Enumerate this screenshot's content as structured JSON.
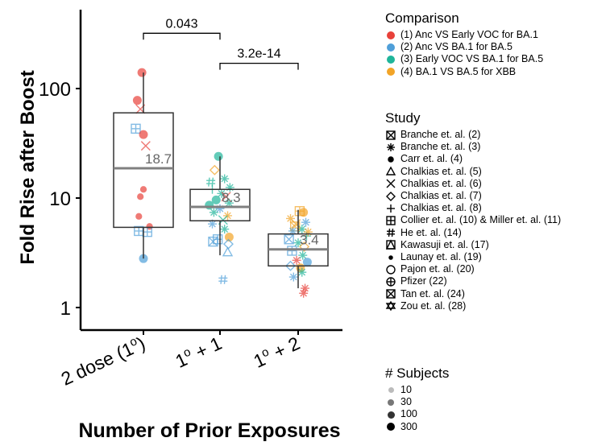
{
  "chart_data": {
    "type": "box",
    "ylabel": "Fold Rise after Boost",
    "xlabel": "Number of Prior Exposures",
    "yscale": "log",
    "ylim": [
      0.6,
      500
    ],
    "yticks": [
      {
        "value": 1,
        "label": "1"
      },
      {
        "value": 10,
        "label": "10"
      },
      {
        "value": 100,
        "label": "100"
      }
    ],
    "categories": [
      {
        "base": "2 dose (",
        "sup": "o",
        "sup_prefix": "1",
        "tail": ")"
      },
      {
        "base": "1",
        "sup": "o",
        "tail": " + 1"
      },
      {
        "base": "1",
        "sup": "o",
        "tail": " + 2"
      }
    ],
    "boxes": [
      {
        "q1": 5.4,
        "median": 18.7,
        "q3": 60,
        "whisker_low": 2.8,
        "whisker_high": 140,
        "median_label": "18.7"
      },
      {
        "q1": 6.2,
        "median": 8.3,
        "q3": 12,
        "whisker_low": 3.0,
        "whisker_high": 24,
        "median_label": "8.3"
      },
      {
        "q1": 2.4,
        "median": 3.4,
        "q3": 4.7,
        "whisker_low": 1.5,
        "whisker_high": 7.8,
        "median_label": "3.4"
      }
    ],
    "comparisons_brackets": [
      {
        "from": 0,
        "to": 1,
        "label": "0.043",
        "y": 320
      },
      {
        "from": 1,
        "to": 2,
        "label": "3.2e-14",
        "y": 170
      }
    ],
    "points": [
      [
        0,
        -0.02,
        140,
        0,
        "circle"
      ],
      [
        0,
        -0.08,
        78,
        0,
        "circle"
      ],
      [
        0,
        -0.04,
        65,
        0,
        "x"
      ],
      [
        0,
        0.03,
        30,
        0,
        "x"
      ],
      [
        0,
        0.0,
        12,
        0,
        "dot"
      ],
      [
        0,
        -0.04,
        10.3,
        0,
        "dot"
      ],
      [
        0,
        -0.06,
        6.8,
        0,
        "dot"
      ],
      [
        0,
        0.08,
        5.5,
        0,
        "dot"
      ],
      [
        0,
        -0.06,
        5.0,
        1,
        "boxplus"
      ],
      [
        0,
        0.05,
        4.9,
        1,
        "boxplus"
      ],
      [
        0,
        0.0,
        2.8,
        1,
        "circle"
      ],
      [
        0,
        -0.1,
        43,
        1,
        "boxplus"
      ],
      [
        0,
        0.0,
        38,
        0,
        "circle"
      ],
      [
        1,
        -0.02,
        24,
        2,
        "circle"
      ],
      [
        1,
        -0.07,
        18,
        3,
        "diamond"
      ],
      [
        1,
        0.06,
        15,
        2,
        "star"
      ],
      [
        1,
        -0.1,
        12,
        2,
        "plus"
      ],
      [
        1,
        0.02,
        11,
        2,
        "star"
      ],
      [
        1,
        0.08,
        10.3,
        0,
        "x"
      ],
      [
        1,
        -0.05,
        9.6,
        2,
        "circle"
      ],
      [
        1,
        0.12,
        9.0,
        2,
        "star"
      ],
      [
        1,
        -0.14,
        8.6,
        2,
        "circle"
      ],
      [
        1,
        0.0,
        8.0,
        1,
        "star"
      ],
      [
        1,
        -0.08,
        7.4,
        2,
        "star"
      ],
      [
        1,
        0.1,
        6.9,
        3,
        "star"
      ],
      [
        1,
        0.04,
        6.3,
        2,
        "x"
      ],
      [
        1,
        -0.1,
        5.8,
        1,
        "star"
      ],
      [
        1,
        0.06,
        5.2,
        2,
        "star"
      ],
      [
        1,
        0.12,
        4.4,
        3,
        "circle"
      ],
      [
        1,
        -0.03,
        4.2,
        1,
        "boxplus"
      ],
      [
        1,
        -0.09,
        4.0,
        1,
        "boxx"
      ],
      [
        1,
        0.11,
        3.8,
        1,
        "diamond"
      ],
      [
        1,
        0.1,
        3.2,
        1,
        "triangle"
      ],
      [
        1,
        0.04,
        1.8,
        1,
        "hash"
      ],
      [
        1,
        -0.12,
        14,
        2,
        "hash"
      ],
      [
        1,
        0.13,
        12.5,
        2,
        "star"
      ],
      [
        2,
        0.02,
        7.6,
        3,
        "boxplus"
      ],
      [
        2,
        0.07,
        7.4,
        3,
        "circle"
      ],
      [
        2,
        -0.1,
        6.5,
        3,
        "star"
      ],
      [
        2,
        0.1,
        6.0,
        1,
        "star"
      ],
      [
        2,
        -0.04,
        5.5,
        3,
        "boxx"
      ],
      [
        2,
        0.05,
        5.2,
        2,
        "star"
      ],
      [
        2,
        -0.07,
        5.0,
        1,
        "star"
      ],
      [
        2,
        0.11,
        4.5,
        2,
        "plus"
      ],
      [
        2,
        -0.12,
        4.2,
        1,
        "boxx"
      ],
      [
        2,
        0.0,
        3.9,
        2,
        "star"
      ],
      [
        2,
        0.08,
        3.6,
        3,
        "diamond"
      ],
      [
        2,
        -0.08,
        3.3,
        1,
        "boxplus"
      ],
      [
        2,
        0.06,
        3.0,
        2,
        "star"
      ],
      [
        2,
        -0.02,
        2.7,
        0,
        "star"
      ],
      [
        2,
        0.12,
        2.6,
        1,
        "circle"
      ],
      [
        2,
        -0.1,
        2.4,
        1,
        "diamond"
      ],
      [
        2,
        0.03,
        2.3,
        3,
        "circle"
      ],
      [
        2,
        0.05,
        2.1,
        2,
        "star"
      ],
      [
        2,
        -0.06,
        1.9,
        1,
        "star"
      ],
      [
        2,
        0.09,
        1.5,
        0,
        "star"
      ],
      [
        2,
        0.07,
        1.35,
        0,
        "star"
      ],
      [
        2,
        -0.03,
        5.8,
        3,
        "x"
      ],
      [
        2,
        0.13,
        4.9,
        3,
        "star"
      ]
    ],
    "colors": [
      "#e8413a",
      "#4f9fd9",
      "#1fb59a",
      "#f2a427"
    ],
    "box_color": "#333333",
    "median_color": "#808080"
  },
  "legend_comparison": {
    "title": "Comparison",
    "items": [
      {
        "label": "(1) Anc VS Early VOC for BA.1",
        "color": "#e8413a"
      },
      {
        "label": "(2) Anc VS BA.1 for BA.5",
        "color": "#4f9fd9"
      },
      {
        "label": "(3) Early VOC VS BA.1 for BA.5",
        "color": "#1fb59a"
      },
      {
        "label": "(4) BA.1 VS BA.5 for XBB",
        "color": "#f2a427"
      }
    ]
  },
  "legend_study": {
    "title": "Study",
    "items": [
      {
        "label": "Branche et. al. (2)",
        "shape": "boxx"
      },
      {
        "label": "Branche et. al. (3)",
        "shape": "star"
      },
      {
        "label": "Carr et. al. (4)",
        "shape": "dot"
      },
      {
        "label": "Chalkias et. al. (5)",
        "shape": "triangle"
      },
      {
        "label": "Chalkias et. al. (6)",
        "shape": "x"
      },
      {
        "label": "Chalkias et. al. (7)",
        "shape": "diamond"
      },
      {
        "label": "Chalkias et. al. (8)",
        "shape": "plus"
      },
      {
        "label": "Collier et. al. (10) & Miller et. al. (11)",
        "shape": "boxplus"
      },
      {
        "label": "He et. al. (14)",
        "shape": "hash"
      },
      {
        "label": "Kawasuji et. al. (17)",
        "shape": "boxtri"
      },
      {
        "label": "Launay et. al. (19)",
        "shape": "smalldot"
      },
      {
        "label": "Pajon et. al. (20)",
        "shape": "circle"
      },
      {
        "label": "Pfizer (22)",
        "shape": "circleplus"
      },
      {
        "label": "Tan et. al. (24)",
        "shape": "boxxcircle"
      },
      {
        "label": "Zou et. al. (28)",
        "shape": "star6"
      }
    ]
  },
  "legend_subjects": {
    "title": "# Subjects",
    "items": [
      {
        "label": "10",
        "size": 7,
        "color": "#bbbbbb"
      },
      {
        "label": "30",
        "size": 8,
        "color": "#777777"
      },
      {
        "label": "100",
        "size": 9,
        "color": "#333333"
      },
      {
        "label": "300",
        "size": 10,
        "color": "#000000"
      }
    ]
  }
}
